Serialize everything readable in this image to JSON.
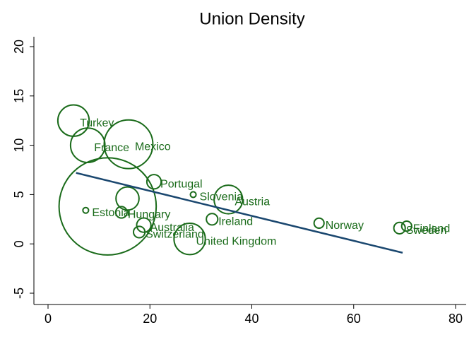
{
  "chart_data": {
    "type": "scatter",
    "title": "Union Density",
    "labels": [
      "Turkey",
      "France",
      "Mexico",
      "Portugal",
      "Slovenia",
      null,
      "Estonia",
      "Hungary",
      null,
      "Australia",
      "Switzerland",
      "United Kingdom",
      "Ireland",
      "Austria",
      "Norway",
      "Finland",
      "Sweden"
    ],
    "x": [
      5.0,
      7.8,
      15.8,
      20.8,
      28.5,
      11.7,
      7.4,
      14.4,
      15.6,
      18.8,
      17.9,
      27.8,
      32.2,
      35.4,
      53.2,
      70.4,
      69.0
    ],
    "values": [
      12.5,
      10.0,
      10.1,
      6.3,
      5.0,
      3.8,
      3.4,
      3.2,
      4.6,
      1.9,
      1.2,
      0.5,
      2.5,
      4.5,
      2.1,
      1.8,
      1.6
    ],
    "sizes": [
      48,
      58,
      116,
      10,
      1.6,
      462,
      1.6,
      6.4,
      26,
      10,
      6.4,
      48,
      6.4,
      40,
      4.9,
      4.9,
      6.4
    ],
    "color": "#1a6b1a",
    "fit": {
      "x": [
        5.5,
        69.6
      ],
      "values": [
        7.2,
        -0.9
      ],
      "color": "#1a476f"
    },
    "xlim": [
      0,
      80
    ],
    "xticks": [
      0,
      20,
      40,
      60,
      80
    ],
    "ylim": [
      -5,
      20
    ],
    "yticks": [
      -5,
      0,
      5,
      10,
      15,
      20
    ]
  }
}
